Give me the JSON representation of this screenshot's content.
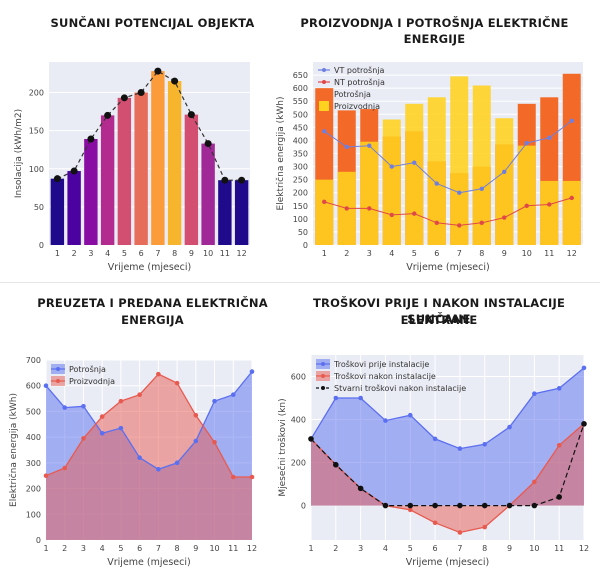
{
  "chart_data": [
    {
      "type": "bar",
      "title": "SUNČANI POTENCIJAL OBJEKTA",
      "xlabel": "Vrijeme (mjeseci)",
      "ylabel": "Insolacija (kWh/m2)",
      "ylim": [
        0,
        240
      ],
      "yticks": [
        0,
        50,
        100,
        150,
        200
      ],
      "categories": [
        "1",
        "2",
        "3",
        "4",
        "5",
        "6",
        "7",
        "8",
        "9",
        "10",
        "11",
        "12"
      ],
      "values": [
        87,
        97,
        139,
        170,
        193,
        200,
        228,
        215,
        171,
        133,
        85,
        85
      ],
      "bar_colors": [
        "#1f0a8c",
        "#4c02a1",
        "#8a0da3",
        "#b32b8f",
        "#d24f71",
        "#e66d59",
        "#fb9b3a",
        "#f7b52e",
        "#d24f71",
        "#a12897",
        "#1f0a8c",
        "#1f0a8c"
      ],
      "line_color": "#333333"
    },
    {
      "type": "bar",
      "title": "PROIZVODNJA I POTROŠNJA ELEKTRIČNE ENERGIJE",
      "xlabel": "Vrijeme (mjeseci)",
      "ylabel": "Električna energija (kWh)",
      "ylim": [
        0,
        700
      ],
      "yticks": [
        0,
        50,
        100,
        150,
        200,
        250,
        300,
        350,
        400,
        450,
        500,
        550,
        600,
        650
      ],
      "categories": [
        "1",
        "2",
        "3",
        "4",
        "5",
        "6",
        "7",
        "8",
        "9",
        "10",
        "11",
        "12"
      ],
      "legend": [
        "VT potrošnja",
        "NT potrošnja",
        "Potrošnja",
        "Proizvodnja"
      ],
      "series": [
        {
          "name": "VT potrošnja",
          "kind": "line",
          "color": "#6f7fe0",
          "values": [
            435,
            375,
            380,
            300,
            315,
            235,
            200,
            215,
            280,
            390,
            410,
            475
          ]
        },
        {
          "name": "NT potrošnja",
          "kind": "line",
          "color": "#e04848",
          "values": [
            165,
            140,
            140,
            115,
            120,
            85,
            75,
            85,
            105,
            150,
            155,
            180
          ]
        },
        {
          "name": "Potrošnja",
          "kind": "bar",
          "color": "#f36a28",
          "values": [
            600,
            515,
            520,
            415,
            435,
            320,
            275,
            300,
            385,
            540,
            565,
            655
          ]
        },
        {
          "name": "Proizvodnja",
          "kind": "bar",
          "color": "#ffd21f",
          "values": [
            250,
            280,
            395,
            480,
            540,
            565,
            645,
            610,
            485,
            380,
            245,
            245
          ]
        }
      ]
    },
    {
      "type": "area",
      "title_lines": [
        "PREUZETA I PREDANA ELEKTRIČNA",
        "ENERGIJA"
      ],
      "xlabel": "Vrijeme (mjeseci)",
      "ylabel": "Električna energija (kWh)",
      "ylim": [
        0,
        700
      ],
      "yticks": [
        0,
        100,
        200,
        300,
        400,
        500,
        600,
        700
      ],
      "x": [
        1,
        2,
        3,
        4,
        5,
        6,
        7,
        8,
        9,
        10,
        11,
        12
      ],
      "legend": [
        "Potrošnja",
        "Proizvodnja"
      ],
      "series": [
        {
          "name": "Potrošnja",
          "color": "#5b6ff0",
          "values": [
            600,
            515,
            520,
            415,
            435,
            320,
            275,
            300,
            385,
            540,
            565,
            655
          ]
        },
        {
          "name": "Proizvodnja",
          "color": "#e85a4f",
          "values": [
            250,
            280,
            395,
            480,
            540,
            565,
            645,
            610,
            485,
            380,
            245,
            245
          ]
        }
      ]
    },
    {
      "type": "area",
      "title_lines": [
        "TROŠKOVI PRIJE I NAKON INSTALACIJE SUNČANE",
        "ELEKTRANE"
      ],
      "xlabel": "Vrijeme (mjeseci)",
      "ylabel": "Mjesečni troškovi (kn)",
      "ylim": [
        -160,
        700
      ],
      "yticks": [
        0,
        200,
        400,
        600
      ],
      "x": [
        1,
        2,
        3,
        4,
        5,
        6,
        7,
        8,
        9,
        10,
        11,
        12
      ],
      "legend": [
        "Troškovi prije instalacije",
        "Troškovi nakon instalacije",
        "Stvarni troškovi nakon instalacije"
      ],
      "series": [
        {
          "name": "Troškovi prije instalacije",
          "color": "#5b6ff0",
          "values": [
            310,
            500,
            500,
            395,
            420,
            310,
            265,
            285,
            365,
            520,
            545,
            640
          ]
        },
        {
          "name": "Troškovi nakon instalacije",
          "color": "#e85a4f",
          "values": [
            310,
            190,
            80,
            0,
            -20,
            -80,
            -125,
            -100,
            0,
            110,
            280,
            380
          ]
        },
        {
          "name": "Stvarni troškovi nakon instalacije",
          "color": "#111111",
          "values": [
            310,
            190,
            80,
            0,
            0,
            0,
            0,
            0,
            0,
            0,
            40,
            380
          ]
        }
      ]
    }
  ]
}
